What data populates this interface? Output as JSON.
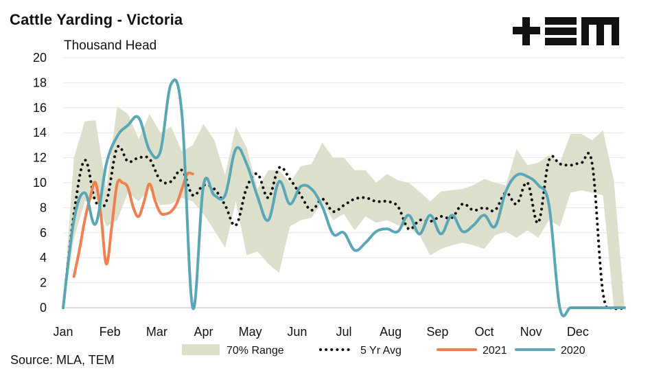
{
  "title": "Cattle Yarding - Victoria",
  "unit_label": "Thousand Head",
  "source": "Source: MLA, TEM",
  "logo_alt": "TEM",
  "colors": {
    "range": "#dddfcd",
    "avg": "#111111",
    "y2021": "#f08050",
    "y2020": "#5aa6b4",
    "grid": "#e6e6e6"
  },
  "chart_data": {
    "type": "line",
    "xlabel": "",
    "ylabel": "Thousand Head",
    "x_ticks": [
      "Jan",
      "Feb",
      "Mar",
      "Apr",
      "May",
      "Jun",
      "Jul",
      "Aug",
      "Sep",
      "Oct",
      "Nov",
      "Dec"
    ],
    "y_ticks": [
      "0",
      "2",
      "4",
      "6",
      "8",
      "10",
      "12",
      "14",
      "16",
      "18",
      "20"
    ],
    "ylim": [
      0,
      20
    ],
    "xlim": [
      1,
      53
    ],
    "grid": "horizontal",
    "legend": {
      "position": "bottom",
      "entries": [
        "70% Range",
        "5 Yr Avg",
        "2021",
        "2020"
      ]
    },
    "range_70": {
      "x": [
        1,
        2,
        3,
        4,
        5,
        6,
        7,
        8,
        9,
        10,
        11,
        12,
        13,
        14,
        15,
        16,
        17,
        18,
        19,
        20,
        21,
        22,
        23,
        24,
        25,
        26,
        27,
        28,
        29,
        30,
        31,
        32,
        33,
        34,
        35,
        36,
        37,
        38,
        39,
        40,
        41,
        42,
        43,
        44,
        45,
        46,
        47,
        48,
        49,
        50,
        51,
        52,
        53
      ],
      "low": [
        0,
        5.5,
        8.5,
        8.8,
        6.5,
        7,
        9.2,
        8.5,
        9.5,
        8.2,
        8.3,
        8.8,
        8.5,
        7.5,
        6.2,
        4.8,
        8.5,
        4.2,
        4.5,
        3.5,
        2.8,
        6.5,
        7,
        7.2,
        8.5,
        7,
        7.5,
        6.2,
        7.3,
        6.8,
        7,
        6.6,
        6.4,
        5.8,
        4.2,
        4.7,
        5,
        5.2,
        5,
        4.7,
        5.8,
        6.1,
        5.6,
        6.2,
        5.6,
        7,
        6.5,
        9.2,
        9.4,
        9.2,
        9,
        0,
        0
      ],
      "high": [
        0,
        12,
        14.9,
        15,
        9.5,
        16.1,
        15.5,
        13.5,
        15.5,
        14,
        14.5,
        12.5,
        13,
        14.7,
        13.4,
        10.6,
        14.5,
        12.8,
        9.5,
        11,
        11,
        10,
        11.3,
        11.5,
        13.2,
        12,
        12,
        11,
        11,
        10,
        10.7,
        10.2,
        10,
        9.3,
        8.5,
        9.3,
        9.4,
        9.5,
        9.8,
        10.3,
        10,
        9.8,
        12.7,
        11.4,
        11.6,
        12.2,
        11.6,
        13.9,
        13.9,
        13.4,
        14.2,
        10.2,
        0
      ]
    },
    "series": [
      {
        "name": "5 Yr Avg",
        "style": "dotted",
        "x": [
          1,
          2,
          3,
          4,
          5,
          6,
          7,
          8,
          9,
          10,
          11,
          12,
          13,
          14,
          15,
          16,
          17,
          18,
          19,
          20,
          21,
          22,
          23,
          24,
          25,
          26,
          27,
          28,
          29,
          30,
          31,
          32,
          33,
          34,
          35,
          36,
          37,
          38,
          39,
          40,
          41,
          42,
          43,
          44,
          45,
          46,
          47,
          48,
          49,
          50,
          51,
          52,
          53
        ],
        "values": [
          0,
          7.5,
          11.8,
          8.5,
          8.5,
          12.8,
          11.7,
          12,
          11.9,
          10.2,
          10.1,
          11,
          9,
          9.8,
          9.5,
          8.2,
          6.6,
          9.6,
          10.7,
          8.8,
          11.2,
          10.3,
          9,
          7.8,
          8.7,
          7.7,
          8.2,
          8.7,
          8.8,
          8.5,
          8.5,
          8.1,
          6.3,
          7,
          6.9,
          7.3,
          7.2,
          8.3,
          7.8,
          8,
          7.8,
          9.2,
          8.3,
          10,
          6.8,
          11.8,
          11.5,
          11.4,
          11.6,
          11.5,
          1.2,
          0,
          0
        ]
      },
      {
        "name": "2021",
        "style": "solid",
        "x": [
          2,
          2.5,
          3,
          3.5,
          4,
          4.5,
          5,
          5.5,
          6,
          6.5,
          7,
          7.5,
          8,
          8.5,
          9,
          9.5,
          10,
          10.5,
          11,
          11.5,
          12,
          12.5,
          13
        ],
        "values": [
          2.5,
          4.6,
          7,
          8.8,
          10,
          7.4,
          3.5,
          6.5,
          9.9,
          10,
          9.6,
          8,
          7.3,
          8.5,
          9.9,
          8.6,
          7.6,
          7.5,
          7.7,
          8.3,
          9.5,
          10.7,
          10.7
        ]
      },
      {
        "name": "2020",
        "style": "solid",
        "x": [
          1,
          2,
          3,
          4,
          5,
          6,
          7,
          8,
          9,
          10,
          11,
          12,
          13,
          14,
          15,
          16,
          17,
          18,
          19,
          20,
          21,
          22,
          23,
          24,
          25,
          26,
          27,
          28,
          29,
          30,
          31,
          32,
          33,
          34,
          35,
          36,
          37,
          38,
          39,
          40,
          41,
          42,
          43,
          44,
          45,
          46,
          47,
          48,
          49,
          50,
          51,
          52,
          53
        ],
        "values": [
          0,
          7,
          9.2,
          6.7,
          11.5,
          13.7,
          14.6,
          15.2,
          12.6,
          12.5,
          17.9,
          15.5,
          0,
          9.8,
          9,
          9,
          12.7,
          11.5,
          8.9,
          7,
          10.1,
          8.3,
          9.7,
          9.5,
          8.1,
          5.9,
          6,
          4.6,
          5.2,
          6.1,
          6.3,
          6.1,
          7.4,
          5.9,
          7.4,
          5.9,
          7.4,
          6.1,
          6.6,
          7.4,
          6.5,
          9.3,
          10.6,
          10.5,
          9.8,
          8.2,
          0,
          0,
          0,
          0,
          0,
          0,
          0
        ]
      }
    ]
  }
}
